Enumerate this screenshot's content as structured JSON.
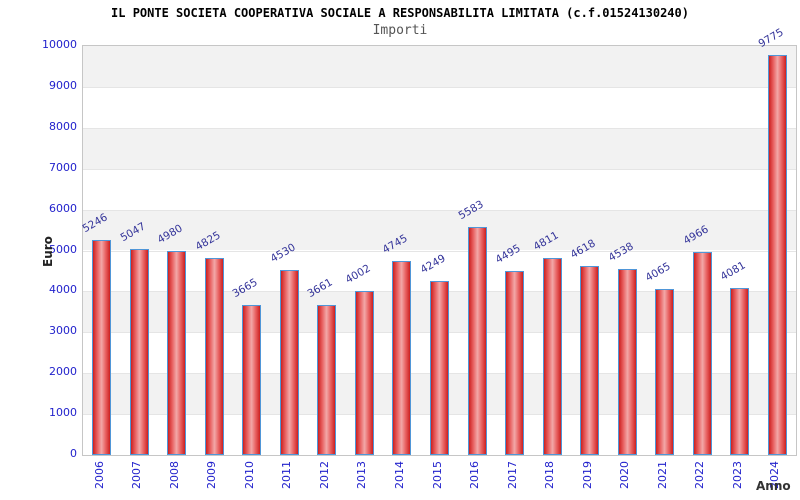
{
  "chart_data": {
    "type": "bar",
    "title": "IL PONTE SOCIETA COOPERATIVA SOCIALE A RESPONSABILITA LIMITATA (c.f.01524130240)",
    "subtitle": "Importi",
    "xlabel": "Anno",
    "ylabel": "Euro",
    "categories": [
      "2006",
      "2007",
      "2008",
      "2009",
      "2010",
      "2011",
      "2012",
      "2013",
      "2014",
      "2015",
      "2016",
      "2017",
      "2018",
      "2019",
      "2020",
      "2021",
      "2022",
      "2023",
      "2024"
    ],
    "values": [
      5246,
      5047,
      4980,
      4825,
      3665,
      4530,
      3661,
      4002,
      4745,
      4249,
      5583,
      4495,
      4811,
      4618,
      4538,
      4065,
      4966,
      4081,
      9775
    ],
    "ylim": [
      0,
      10000
    ],
    "ytick_step": 1000,
    "grid": "horizontal gridlines every 1000 with alternating gray/white bands, gray band at top",
    "legend": "none",
    "colors": {
      "axis_text": "#2222cc",
      "value_label": "#333399",
      "bar_border": "#4f96d8",
      "bar_edge": "#cc2020",
      "bar_mid": "#e86060",
      "bar_center": "#f2a8a8",
      "band_gray": "#f2f2f2",
      "gridline": "#e5e5e5",
      "plot_border": "#c6c6c6",
      "title": "#000000",
      "subtitle": "#555555",
      "axis_title": "#222222"
    }
  }
}
